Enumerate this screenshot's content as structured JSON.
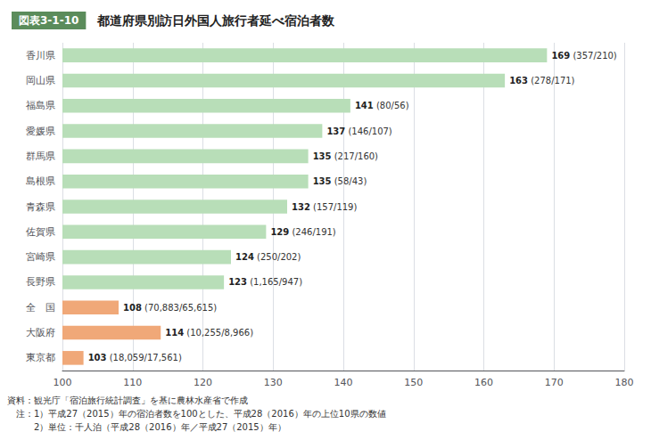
{
  "chart_data": {
    "type": "bar",
    "orientation": "horizontal",
    "subtitle": "図表3-1-10",
    "title": "都道府県別訪日外国人旅行者延べ宿泊者数",
    "categories": [
      "香川県",
      "岡山県",
      "福島県",
      "愛媛県",
      "群馬県",
      "島根県",
      "青森県",
      "佐賀県",
      "宮崎県",
      "長野県",
      "全　国",
      "大阪府",
      "東京都"
    ],
    "values": [
      169,
      163,
      141,
      137,
      135,
      135,
      132,
      129,
      124,
      123,
      108,
      114,
      103
    ],
    "colors": [
      "#b8deb8",
      "#b8deb8",
      "#b8deb8",
      "#b8deb8",
      "#b8deb8",
      "#b8deb8",
      "#b8deb8",
      "#b8deb8",
      "#b8deb8",
      "#b8deb8",
      "#f0a878",
      "#f0a878",
      "#f0a878"
    ],
    "data_labels": true,
    "annotations": [
      "(357/210)",
      "(278/171)",
      "(80/56)",
      "(146/107)",
      "(217/160)",
      "(58/43)",
      "(157/119)",
      "(246/191)",
      "(250/202)",
      "(1,165/947)",
      "(70,883/65,615)",
      "(10,255/8,966)",
      "(18,059/17,561)"
    ],
    "xlim": [
      100,
      180
    ],
    "xticks": [
      100,
      110,
      120,
      130,
      140,
      150,
      160,
      170,
      180
    ],
    "grid": true,
    "footnotes": [
      "資料：観光庁「宿泊旅行統計調査」を基に農林水産省で作成",
      "　注：1）平成27（2015）年の宿泊者数を100とした、平成28（2016）年の上位10県の数値",
      "　　　2）単位：千人泊（平成28（2016）年／平成27（2015）年）"
    ]
  }
}
